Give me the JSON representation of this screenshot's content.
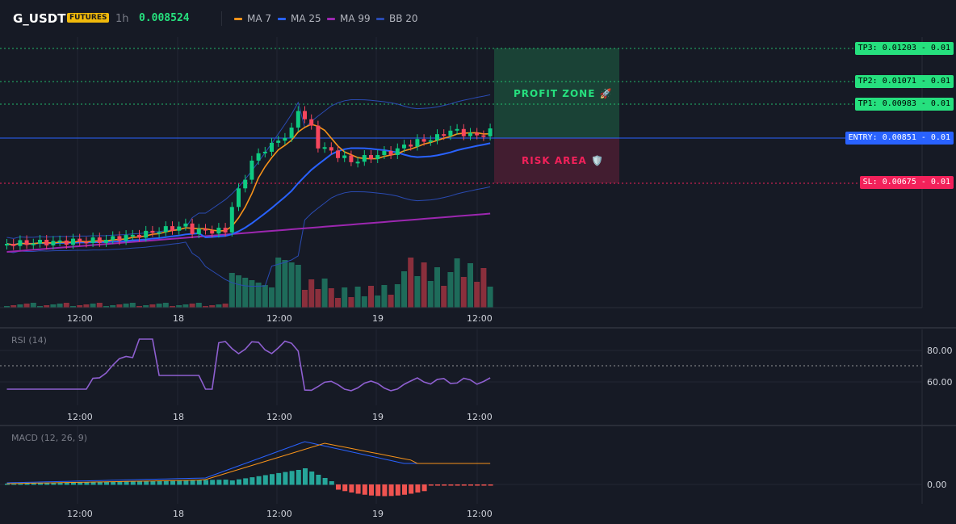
{
  "header": {
    "symbol": "G_USDT",
    "badge": "FUTURES",
    "interval": "1h",
    "price": "0.008524",
    "legend": [
      {
        "label": "MA 7",
        "color": "#f7931a"
      },
      {
        "label": "MA 25",
        "color": "#2962ff"
      },
      {
        "label": "MA 99",
        "color": "#9c27b0"
      },
      {
        "label": "BB 20",
        "color": "#2a4bb3"
      }
    ]
  },
  "levels": {
    "tp3": {
      "label": "TP3: 0.01203 - 0.01",
      "color": "#26e07e"
    },
    "tp2": {
      "label": "TP2: 0.01071 - 0.01",
      "color": "#26e07e"
    },
    "tp1": {
      "label": "TP1: 0.00983 - 0.01",
      "color": "#26e07e"
    },
    "entry": {
      "label": "ENTRY: 0.00851 - 0.01",
      "color": "#2962ff"
    },
    "sl": {
      "label": "SL: 0.00675 - 0.01",
      "color": "#f2215a"
    }
  },
  "zones": {
    "profit": "PROFIT ZONE 🚀",
    "risk": "RISK AREA 🛡️"
  },
  "time_axis": [
    "12:00",
    "18",
    "12:00",
    "19",
    "12:00"
  ],
  "rsi": {
    "title": "RSI (14)",
    "ticks": [
      "80.00",
      "60.00"
    ]
  },
  "macd": {
    "title": "MACD (12, 26, 9)",
    "ticks": [
      "0.00"
    ]
  },
  "colors": {
    "up": "#0ecb81",
    "down": "#f6465d",
    "vol_up": "#1e6b5a",
    "vol_down": "#8a2f3c",
    "rsi": "#8e5fd0",
    "macd": "#2962ff",
    "signal": "#f7931a"
  }
}
